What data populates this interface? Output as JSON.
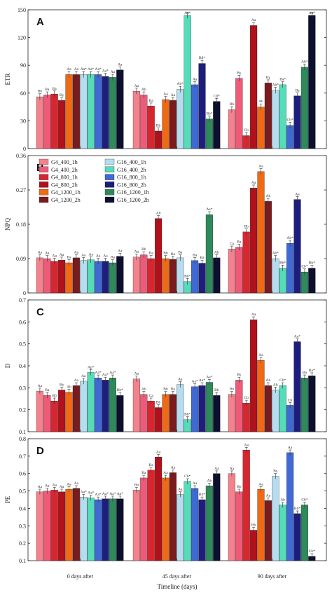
{
  "chart_data": {
    "type": "bar",
    "xlabel": "Timeline (days)",
    "categories": [
      "0 days after",
      "45 days after",
      "90 days after"
    ],
    "legend": [
      "G4_400_1h",
      "G4_400_2h",
      "G4_800_1h",
      "G4_800_2h",
      "G4_1200_1h",
      "G4_1200_2h",
      "G16_400_1h",
      "G16_400_2h",
      "G16_800_1h",
      "G16_800_2h",
      "G16_1200_1h",
      "G16_1200_2h"
    ],
    "colors": [
      "#f4828c",
      "#ef5a78",
      "#d8262f",
      "#b2111b",
      "#ef6a14",
      "#7a1b1e",
      "#b5ddef",
      "#55dcb8",
      "#3f69d4",
      "#1d1d7e",
      "#2f8a5b",
      "#0d0f2e"
    ],
    "legend_placement": "top-left of panel B",
    "panels": [
      {
        "label": "A",
        "ylabel": "ETR",
        "ylim": [
          0,
          150
        ],
        "yticks": [
          "0",
          "30",
          "60",
          "90",
          "120",
          "150"
        ],
        "values": [
          [
            56,
            58,
            59,
            52,
            80,
            80,
            80,
            80,
            80,
            78,
            77,
            85
          ],
          [
            62,
            58,
            46,
            19,
            53,
            52,
            64,
            144,
            69,
            92,
            32,
            51
          ],
          [
            42,
            76,
            14,
            133,
            45,
            71,
            63,
            69,
            25,
            57,
            88,
            144
          ]
        ],
        "labels": [
          [
            "Bb",
            "Ba",
            "Ba",
            "Bγ",
            "Aa",
            "Aa",
            "Aa*",
            "Aa*",
            "Aa*",
            "Aa*",
            "Aa",
            "Aa"
          ],
          [
            "Aa",
            "Ab",
            "Ba",
            "Bb",
            "Aa",
            "Aa",
            "Ab*",
            "Aa*",
            "Aa",
            "Bβ*",
            "Bb*",
            "Cβ*"
          ],
          [
            "Bb",
            "Bγ",
            "Cb",
            "Aa",
            "Ab",
            "Bγ",
            "Ab*",
            "Ba*",
            "Cb*",
            "Ba",
            "Ab*",
            "Aa*"
          ]
        ]
      },
      {
        "label": "B",
        "ylabel": "NPQ",
        "ylim": [
          0,
          0.36
        ],
        "yticks": [
          "0",
          "0.09",
          "0.18",
          "0.27",
          "0.36"
        ],
        "values": [
          [
            0.092,
            0.09,
            0.083,
            0.086,
            0.079,
            0.092,
            0.085,
            0.087,
            0.083,
            0.083,
            0.079,
            0.096
          ],
          [
            0.094,
            0.1,
            0.09,
            0.195,
            0.09,
            0.088,
            0.092,
            0.03,
            0.085,
            0.078,
            0.205,
            0.092
          ],
          [
            0.115,
            0.12,
            0.16,
            0.275,
            0.318,
            0.24,
            0.09,
            0.065,
            0.13,
            0.245,
            0.055,
            0.065
          ]
        ],
        "labels": [
          [
            "Aa",
            "Aa",
            "Aa",
            "Aa",
            "Ba",
            "Aa",
            "Aa",
            "Aa",
            "Aa",
            "Aa",
            "Ba",
            "Aa"
          ],
          [
            "Aa",
            "Bb",
            "Ba",
            "Ab",
            "Bb",
            "Ba",
            "Ba",
            "Bb*",
            "Ba",
            "Ba",
            "Aa*",
            "Ab"
          ],
          [
            "Ca",
            "Ba",
            "Bb",
            "Aa",
            "Aa",
            "Ab",
            "Ab*",
            "Bb*",
            "Ab*",
            "Aa",
            "Cb*",
            "Bb*"
          ]
        ]
      },
      {
        "label": "C",
        "ylabel": "D",
        "ylim": [
          0.1,
          0.7
        ],
        "yticks": [
          "0.1",
          "0.2",
          "0.3",
          "0.4",
          "0.5",
          "0.6",
          "0.7"
        ],
        "values": [
          [
            0.285,
            0.265,
            0.24,
            0.29,
            0.28,
            0.31,
            0.33,
            0.37,
            0.345,
            0.335,
            0.345,
            0.265
          ],
          [
            0.34,
            0.27,
            0.24,
            0.21,
            0.27,
            0.27,
            0.315,
            0.155,
            0.305,
            0.31,
            0.325,
            0.265
          ],
          [
            0.27,
            0.335,
            0.23,
            0.61,
            0.425,
            0.31,
            0.29,
            0.31,
            0.22,
            0.51,
            0.345,
            0.355
          ]
        ],
        "labels": [
          [
            "Aa",
            "Ba",
            "Bb",
            "Bγ",
            "Ab",
            "Aa",
            "Aa",
            "Ap*",
            "Aa*",
            "Aa*",
            "Aa*",
            "Bb*"
          ],
          [
            "Aa",
            "Ab",
            "Ca",
            "Bb",
            "Bb",
            "Ba",
            "Aa",
            "Bb*",
            "Aa*",
            "Aa*",
            "Aa*",
            "Bb"
          ],
          [
            "Bb",
            "Bγ",
            "Cb",
            "Aa",
            "Aa",
            "Ab",
            "Ab",
            "Cb*",
            "Cb",
            "Aa*",
            "Ba",
            "Ba*"
          ]
        ]
      },
      {
        "label": "D",
        "ylabel": "PE",
        "ylim": [
          0.1,
          0.8
        ],
        "yticks": [
          "0.1",
          "0.2",
          "0.3",
          "0.4",
          "0.5",
          "0.6",
          "0.7",
          "0.8"
        ],
        "values": [
          [
            0.495,
            0.5,
            0.505,
            0.495,
            0.51,
            0.515,
            0.465,
            0.46,
            0.45,
            0.455,
            0.455,
            0.455
          ],
          [
            0.505,
            0.575,
            0.62,
            0.695,
            0.575,
            0.605,
            0.48,
            0.555,
            0.515,
            0.45,
            0.53,
            0.6
          ],
          [
            0.6,
            0.495,
            0.735,
            0.275,
            0.51,
            0.445,
            0.585,
            0.42,
            0.72,
            0.37,
            0.42,
            0.125
          ]
        ],
        "labels": [
          [
            "Aa",
            "Aa",
            "Aa",
            "Aa",
            "Aa",
            "Aa",
            "Aa*",
            "Aa*",
            "Aa*",
            "Aa*",
            "Aa*",
            "Aa*"
          ],
          [
            "Bb",
            "Ba",
            "Ba",
            "Aa",
            "Aa",
            "Aa",
            "Aa",
            "Cb*",
            "Aa",
            "Bb*",
            "Ab",
            "Aa"
          ],
          [
            "Aa",
            "Bb",
            "Aa",
            "Bb",
            "Aa",
            "Aa",
            "Bγ",
            "Ab",
            "Aa",
            "Bb*",
            "Cb*",
            "Cb*"
          ]
        ]
      }
    ]
  }
}
